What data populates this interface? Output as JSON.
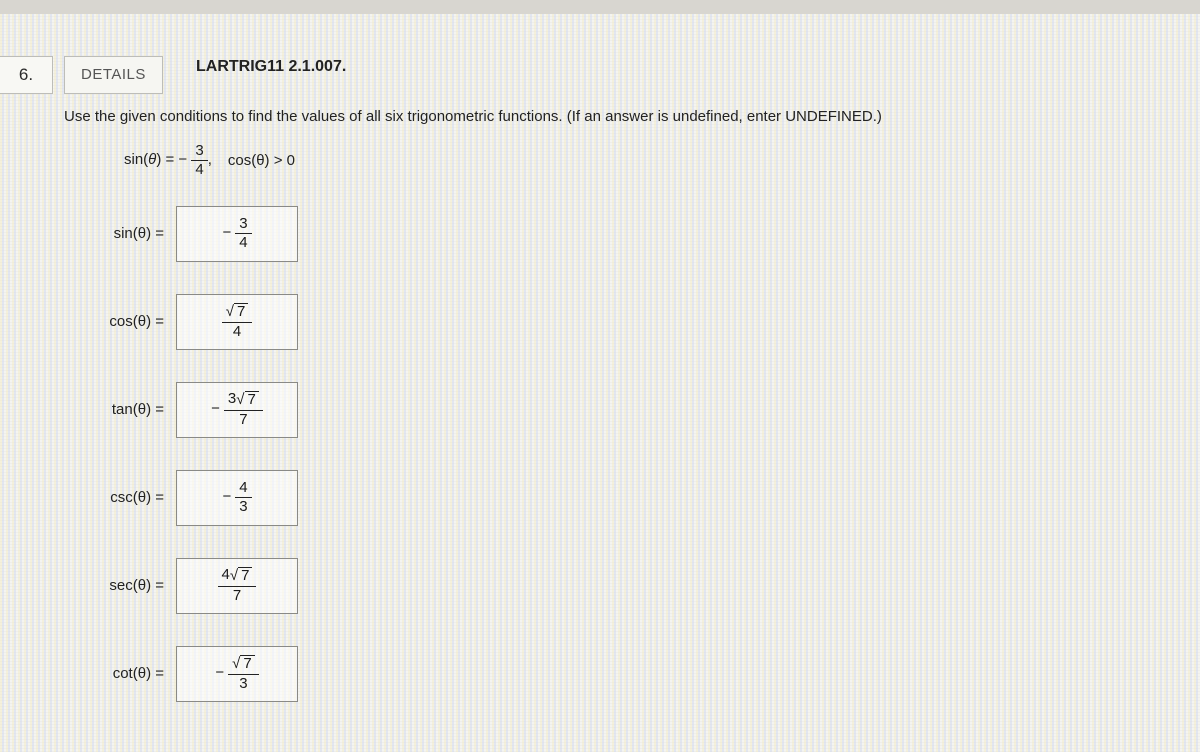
{
  "question_number": "6.",
  "details_label": "DETAILS",
  "source_ref": "LARTRIG11 2.1.007.",
  "instructions": "Use the given conditions to find the values of all six trigonometric functions. (If an answer is undefined, enter UNDEFINED.)",
  "condition": {
    "sin_prefix": "sin(",
    "theta": "θ",
    "sin_suffix": ") = −",
    "sin_num": "3",
    "sin_den": "4",
    "comma": ",",
    "cos_cond": "cos(θ) > 0"
  },
  "answers": [
    {
      "label": "sin(θ) =",
      "neg": true,
      "num_plain": "3",
      "num_coef": null,
      "num_rad": null,
      "den": "4"
    },
    {
      "label": "cos(θ) =",
      "neg": false,
      "num_plain": null,
      "num_coef": "",
      "num_rad": "7",
      "den": "4"
    },
    {
      "label": "tan(θ) =",
      "neg": true,
      "num_plain": null,
      "num_coef": "3",
      "num_rad": "7",
      "den": "7"
    },
    {
      "label": "csc(θ) =",
      "neg": true,
      "num_plain": "4",
      "num_coef": null,
      "num_rad": null,
      "den": "3"
    },
    {
      "label": "sec(θ) =",
      "neg": false,
      "num_plain": null,
      "num_coef": "4",
      "num_rad": "7",
      "den": "7"
    },
    {
      "label": "cot(θ) =",
      "neg": true,
      "num_plain": null,
      "num_coef": "",
      "num_rad": "7",
      "den": "3"
    }
  ],
  "colors": {
    "page_bg": "#f4f4f0",
    "box_border": "#8a8a86",
    "btn_border": "#bdbdb8",
    "text": "#222222"
  }
}
